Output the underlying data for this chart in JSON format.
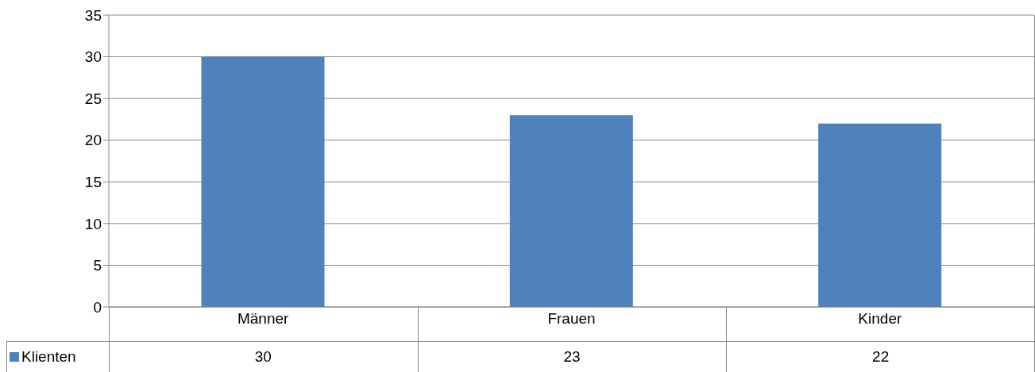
{
  "chart_data": {
    "type": "bar",
    "categories": [
      "Männer",
      "Frauen",
      "Kinder"
    ],
    "series": [
      {
        "name": "Klienten",
        "color": "#4f81bd",
        "values": [
          30,
          23,
          22
        ]
      }
    ],
    "ylim": [
      0,
      35
    ],
    "yticks": [
      0,
      5,
      10,
      15,
      20,
      25,
      30,
      35
    ],
    "grid": "y",
    "legend": "bottom left",
    "data_labels": true
  }
}
